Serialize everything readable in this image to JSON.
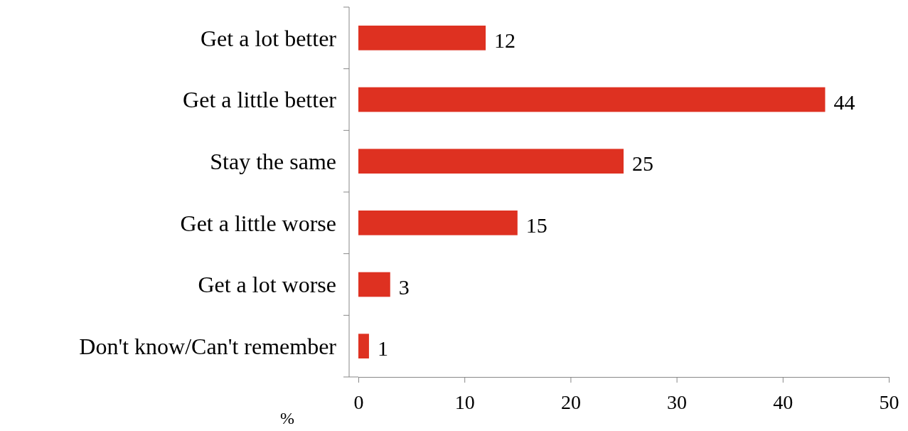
{
  "chart_data": {
    "type": "bar",
    "orientation": "horizontal",
    "xlabel": "%",
    "categories": [
      "Get a lot better",
      "Get a little better",
      "Stay the same",
      "Get a little worse",
      "Get a lot worse",
      "Don't know/Can't remember"
    ],
    "values": [
      12,
      44,
      25,
      15,
      3,
      1
    ],
    "color": "#de3121",
    "xlim": [
      0,
      50
    ],
    "xticks": [
      0,
      10,
      20,
      30,
      40,
      50
    ],
    "data_labels": true,
    "grid": false
  }
}
